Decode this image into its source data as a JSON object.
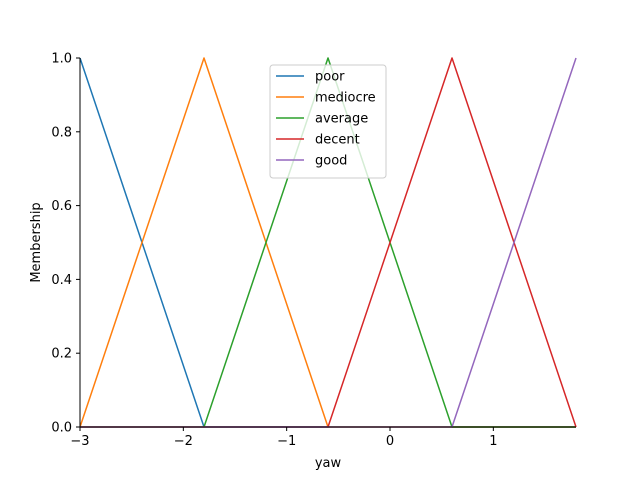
{
  "chart_data": {
    "type": "line",
    "xlabel": "yaw",
    "ylabel": "Membership",
    "xlim": [
      -3,
      1.8
    ],
    "ylim": [
      0,
      1.0
    ],
    "xticks": [
      -3,
      -2,
      -1,
      0,
      1
    ],
    "xtick_labels": [
      "−3",
      "−2",
      "−1",
      "0",
      "1"
    ],
    "yticks": [
      0,
      0.2,
      0.4,
      0.6,
      0.8,
      1.0
    ],
    "ytick_labels": [
      "0.0",
      "0.2",
      "0.4",
      "0.6",
      "0.8",
      "1.0"
    ],
    "grid": false,
    "legend_position": "upper-center",
    "series": [
      {
        "name": "poor",
        "color": "#1f77b4",
        "x": [
          -3,
          -1.8,
          1.8
        ],
        "y": [
          1,
          0,
          0
        ]
      },
      {
        "name": "mediocre",
        "color": "#ff7f0e",
        "x": [
          -3,
          -1.8,
          -0.6,
          1.8
        ],
        "y": [
          0,
          1,
          0,
          0
        ]
      },
      {
        "name": "average",
        "color": "#2ca02c",
        "x": [
          -3,
          -1.8,
          -0.6,
          0.6,
          1.8
        ],
        "y": [
          0,
          0,
          1,
          0,
          0
        ]
      },
      {
        "name": "decent",
        "color": "#d62728",
        "x": [
          -3,
          -0.6,
          0.6,
          1.8
        ],
        "y": [
          0,
          0,
          1,
          0
        ]
      },
      {
        "name": "good",
        "color": "#9467bd",
        "x": [
          -3,
          0.6,
          1.8
        ],
        "y": [
          0,
          0,
          1
        ]
      }
    ]
  }
}
